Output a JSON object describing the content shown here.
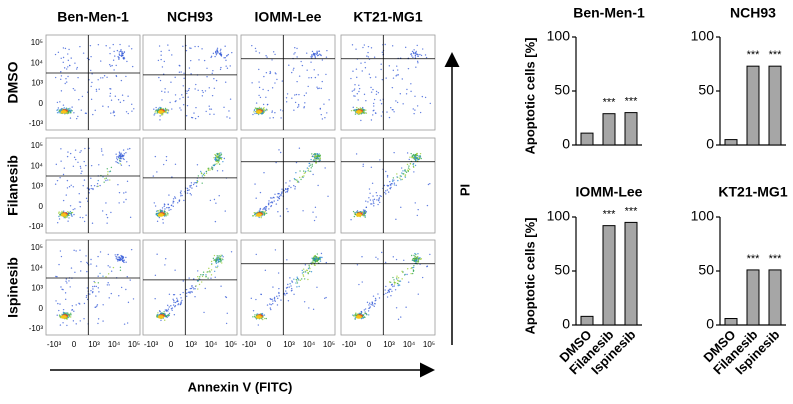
{
  "flow_panel": {
    "columns": [
      "Ben-Men-1",
      "NCH93",
      "IOMM-Lee",
      "KT21-MG1"
    ],
    "rows": [
      "DMSO",
      "Filanesib",
      "Ispinesib"
    ],
    "x_label": "Annexin V (FITC)",
    "y_label": "PI",
    "x_ticks": [
      "-10³",
      "0",
      "10³",
      "10⁴",
      "10⁵"
    ],
    "y_ticks": [
      "10⁵",
      "10⁴",
      "10³",
      "0",
      "-10³"
    ]
  },
  "chart_data": [
    {
      "type": "bar",
      "title": "Ben-Men-1",
      "ylabel": "Apoptotic cells [%]",
      "values": [
        11,
        29,
        30
      ],
      "annotations": [
        null,
        "***",
        "***"
      ],
      "color": "#a6a6a6",
      "ylim": [
        0,
        100
      ],
      "yticks": [
        0,
        50,
        100
      ]
    },
    {
      "type": "bar",
      "title": "NCH93",
      "values": [
        5,
        73,
        73
      ],
      "annotations": [
        null,
        "***",
        "***"
      ],
      "color": "#a6a6a6",
      "ylim": [
        0,
        100
      ],
      "yticks": [
        0,
        50,
        100
      ]
    },
    {
      "type": "bar",
      "title": "IOMM-Lee",
      "ylabel": "Apoptotic cells [%]",
      "categories": [
        "DMSO",
        "Filanesib",
        "Ispinesib"
      ],
      "values": [
        8,
        92,
        95
      ],
      "annotations": [
        null,
        "***",
        "***"
      ],
      "color": "#a6a6a6",
      "ylim": [
        0,
        100
      ],
      "yticks": [
        0,
        50,
        100
      ]
    },
    {
      "type": "bar",
      "title": "KT21-MG1",
      "categories": [
        "DMSO",
        "Filanesib",
        "Ispinesib"
      ],
      "values": [
        6,
        51,
        51
      ],
      "annotations": [
        null,
        "***",
        "***"
      ],
      "color": "#a6a6a6",
      "ylim": [
        0,
        100
      ],
      "yticks": [
        0,
        50,
        100
      ]
    }
  ]
}
